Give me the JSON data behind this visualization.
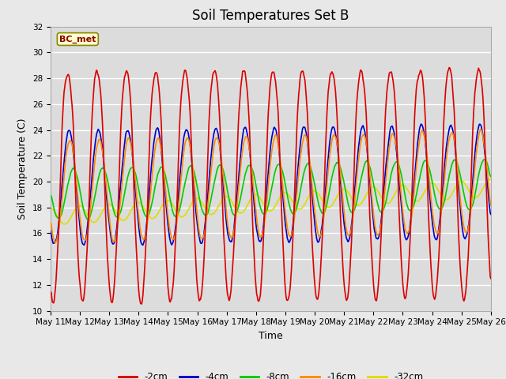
{
  "title": "Soil Temperatures Set B",
  "xlabel": "Time",
  "ylabel": "Soil Temperature (C)",
  "label_text": "BC_met",
  "ylim": [
    10,
    32
  ],
  "series": {
    "-2cm": {
      "color": "#dd0000",
      "lw": 1.2
    },
    "-4cm": {
      "color": "#0000cc",
      "lw": 1.2
    },
    "-8cm": {
      "color": "#00cc00",
      "lw": 1.2
    },
    "-16cm": {
      "color": "#ff8800",
      "lw": 1.2
    },
    "-32cm": {
      "color": "#dddd00",
      "lw": 1.2
    }
  },
  "x_tick_labels": [
    "May 11",
    "May 12",
    "May 13",
    "May 14",
    "May 15",
    "May 16",
    "May 17",
    "May 18",
    "May 19",
    "May 20",
    "May 21",
    "May 22",
    "May 23",
    "May 24",
    "May 25",
    "May 26"
  ],
  "fig_bg_color": "#e8e8e8",
  "plot_bg_color": "#dcdcdc",
  "grid_color": "#ffffff",
  "title_fontsize": 12,
  "axis_label_fontsize": 9,
  "tick_fontsize": 7.5
}
